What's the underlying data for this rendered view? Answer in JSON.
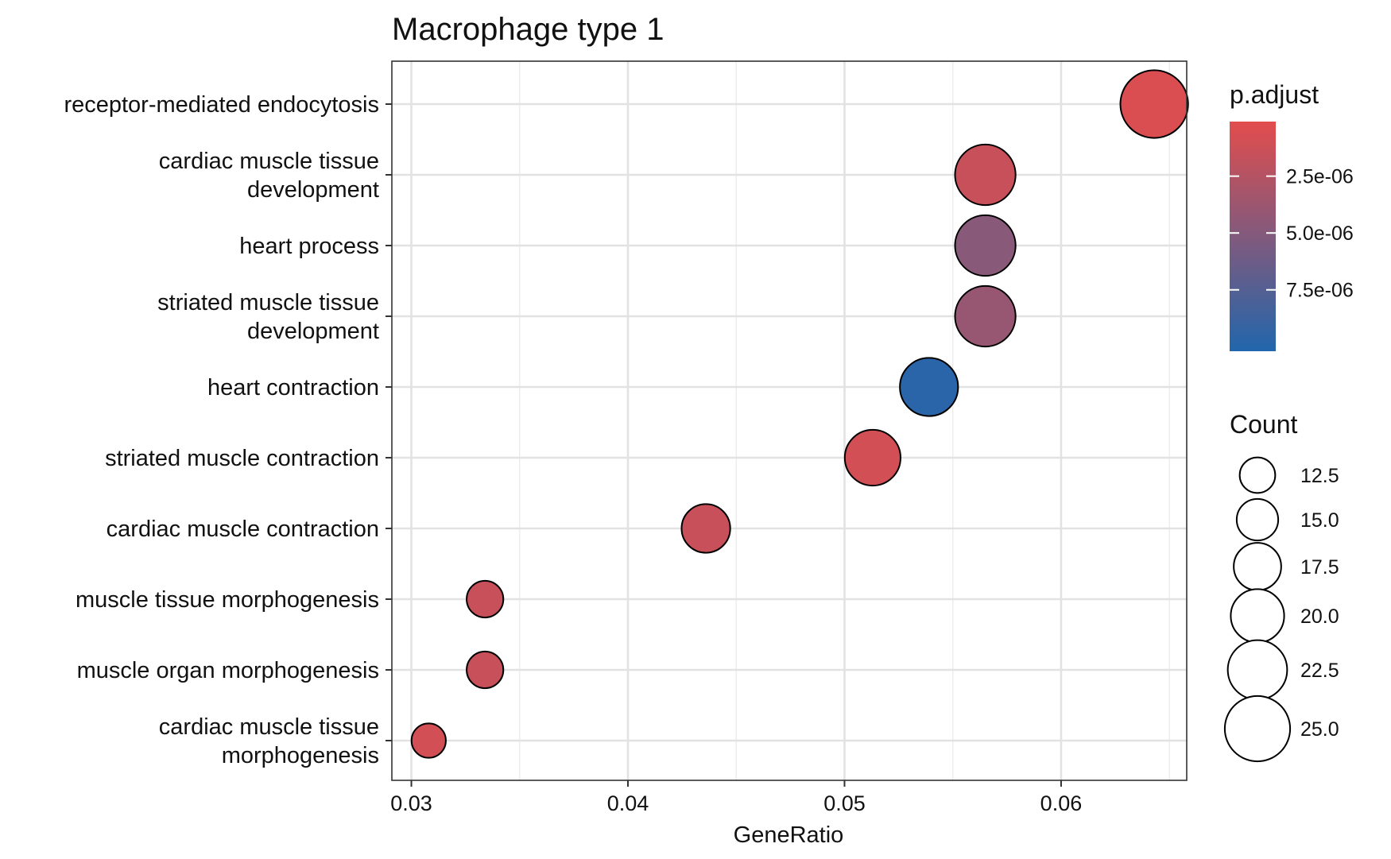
{
  "chart_data": {
    "type": "scatter",
    "title": "Macrophage type 1",
    "xlabel": "GeneRatio",
    "ylabel": "",
    "xlim": [
      0.0291,
      0.0658
    ],
    "xticks": [
      0.03,
      0.04,
      0.05,
      0.06
    ],
    "xtick_labels": [
      "0.03",
      "0.04",
      "0.05",
      "0.06"
    ],
    "grid": true,
    "legend_position": "right",
    "categories": [
      [
        "receptor-mediated endocytosis"
      ],
      [
        "cardiac muscle tissue",
        "development"
      ],
      [
        "heart process"
      ],
      [
        "striated muscle tissue",
        "development"
      ],
      [
        "heart contraction"
      ],
      [
        "striated muscle contraction"
      ],
      [
        "cardiac muscle contraction"
      ],
      [
        "muscle tissue morphogenesis"
      ],
      [
        "muscle organ morphogenesis"
      ],
      [
        "cardiac muscle tissue",
        "morphogenesis"
      ]
    ],
    "points": [
      {
        "x": 0.0643,
        "count": 26,
        "p_adjust": 5e-07
      },
      {
        "x": 0.0565,
        "count": 23,
        "p_adjust": 1.5e-06
      },
      {
        "x": 0.0565,
        "count": 23,
        "p_adjust": 4.8e-06
      },
      {
        "x": 0.0565,
        "count": 23,
        "p_adjust": 4e-06
      },
      {
        "x": 0.0539,
        "count": 22,
        "p_adjust": 9.8e-06
      },
      {
        "x": 0.0513,
        "count": 21,
        "p_adjust": 1e-06
      },
      {
        "x": 0.0436,
        "count": 18,
        "p_adjust": 1.5e-06
      },
      {
        "x": 0.0334,
        "count": 13,
        "p_adjust": 1.5e-06
      },
      {
        "x": 0.0334,
        "count": 13,
        "p_adjust": 1.5e-06
      },
      {
        "x": 0.0308,
        "count": 12,
        "p_adjust": 1e-06
      }
    ],
    "color_legend": {
      "title": "p.adjust",
      "range": [
        1e-07,
        1.02e-05
      ],
      "low_color": "#e24d4d",
      "high_color": "#2166ac",
      "ticks": [
        2.5e-06,
        5e-06,
        7.5e-06
      ],
      "tick_labels": [
        "2.5e-06",
        "5.0e-06",
        "7.5e-06"
      ]
    },
    "size_legend": {
      "title": "Count",
      "values": [
        12.5,
        15.0,
        17.5,
        20.0,
        22.5,
        25.0
      ],
      "labels": [
        "12.5",
        "15.0",
        "17.5",
        "20.0",
        "22.5",
        "25.0"
      ]
    }
  }
}
